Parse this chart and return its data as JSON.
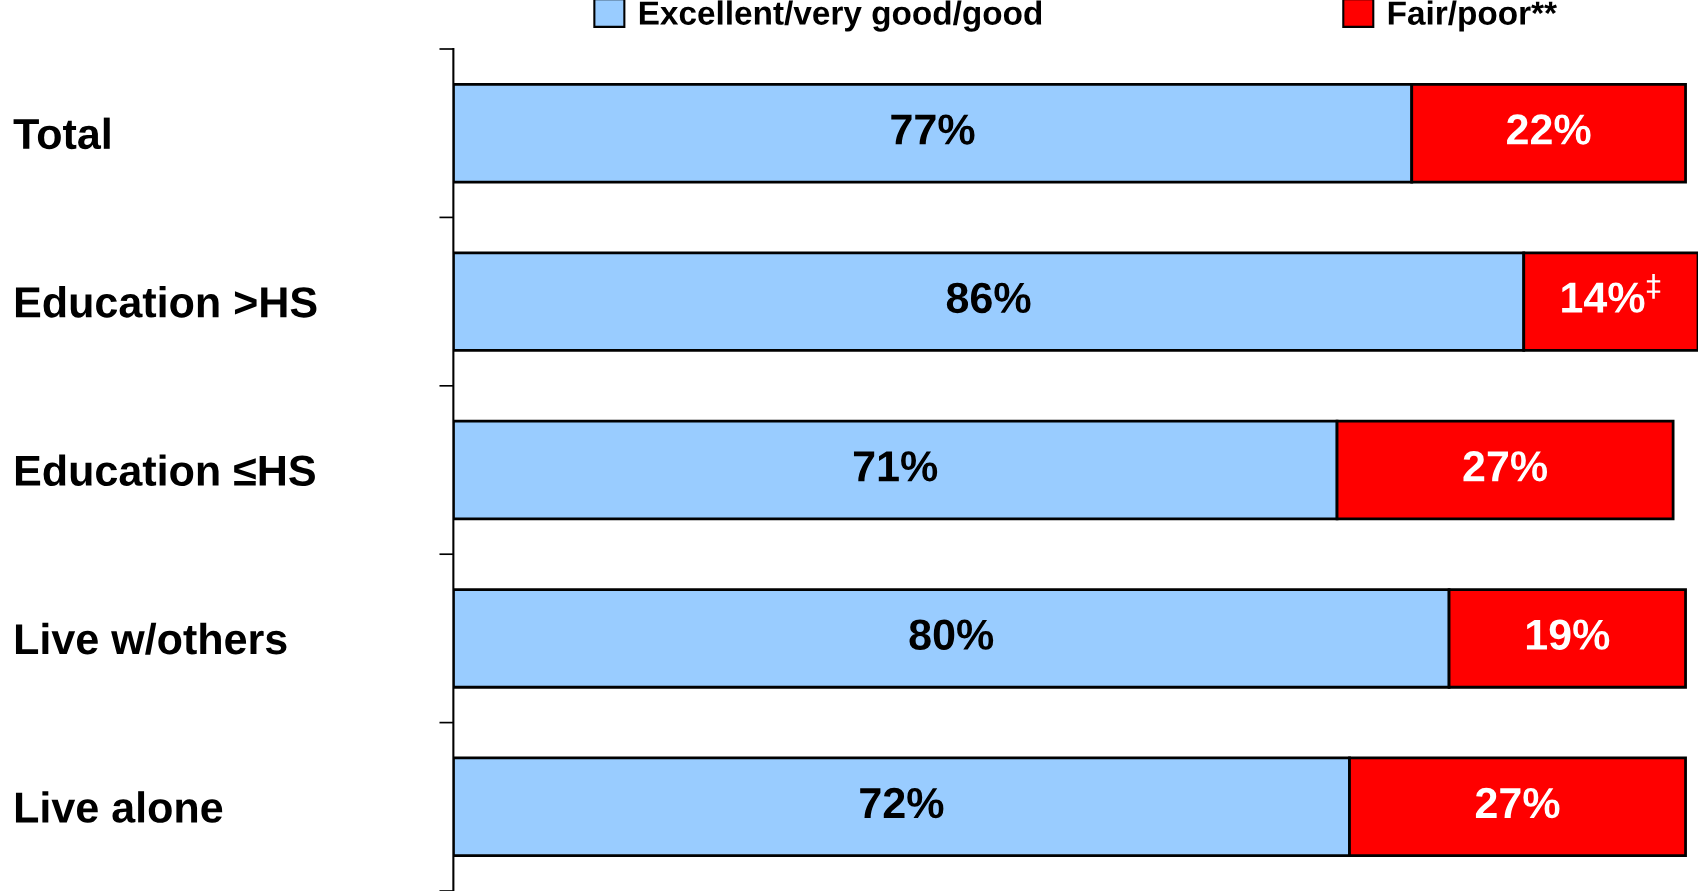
{
  "chart_data": {
    "type": "bar",
    "orientation": "horizontal",
    "stacked": true,
    "categories": [
      "Total",
      "Education >HS",
      "Education ≤HS",
      "Live w/others",
      "Live alone"
    ],
    "series": [
      {
        "name": "Excellent/very good/good",
        "color": "#99ccff",
        "values": [
          77,
          86,
          71,
          80,
          72
        ],
        "value_labels": [
          "77%",
          "86%",
          "71%",
          "80%",
          "72%"
        ]
      },
      {
        "name": "Fair/poor**",
        "color": "#ff0000",
        "values": [
          22,
          14,
          27,
          19,
          27
        ],
        "value_labels": [
          "22%",
          "14%$^{‡}$",
          "27%",
          "19%",
          "27%"
        ]
      }
    ],
    "xlim": [
      0,
      100
    ],
    "tick_labels": "y",
    "legend": "top",
    "grid": false
  }
}
